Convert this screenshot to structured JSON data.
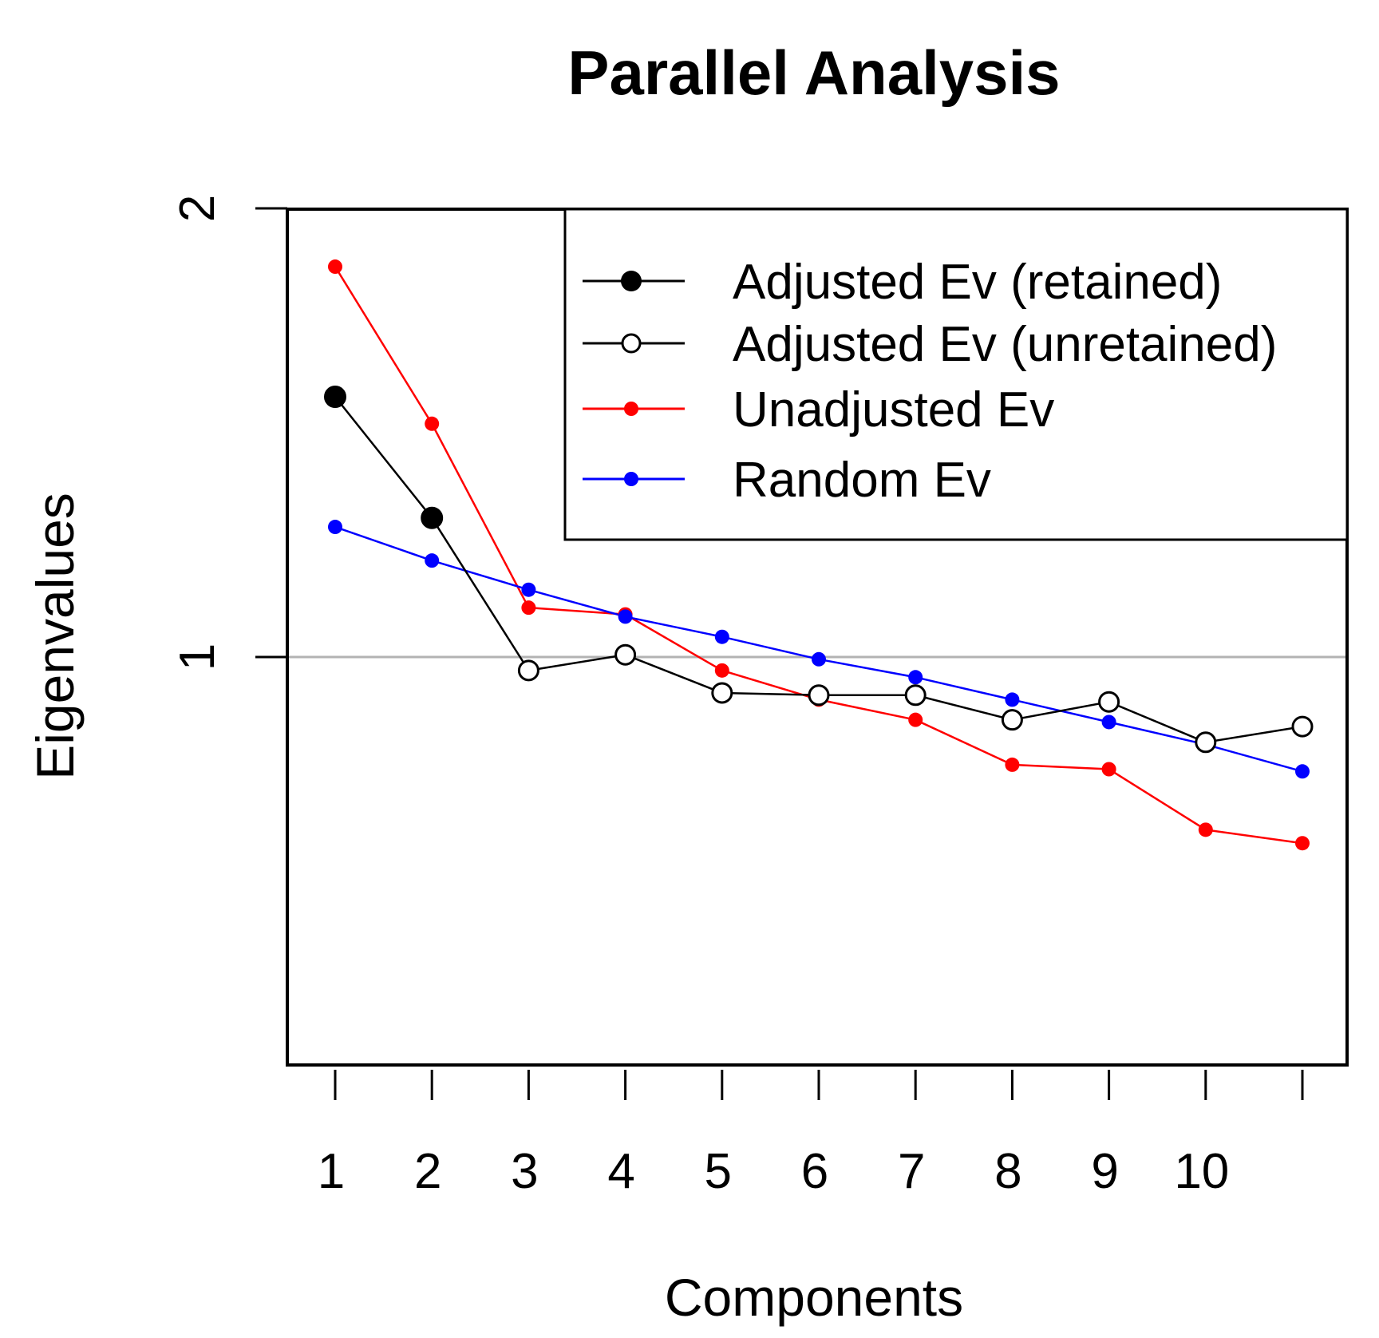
{
  "chart_data": {
    "type": "line",
    "title": "Parallel Analysis",
    "xlabel": "Components",
    "ylabel": "Eigenvalues",
    "x": [
      1,
      2,
      3,
      4,
      5,
      6,
      7,
      8,
      9,
      10,
      11
    ],
    "xtick_labels": [
      "1",
      "2",
      "3",
      "4",
      "5",
      "6",
      "7",
      "8",
      "9",
      "10"
    ],
    "ytick_labels": [
      "2",
      "1"
    ],
    "yticks": [
      2,
      1
    ],
    "xlim": [
      0.5,
      11.5
    ],
    "ylim": [
      0.08,
      2.0
    ],
    "reference_line": {
      "y": 1.0,
      "color": "#b3b3b3"
    },
    "series": [
      {
        "name": "Adjusted Ev (retained)",
        "color": "#000000",
        "marker": "filled-large",
        "x": [
          1,
          2
        ],
        "values": [
          1.58,
          1.31
        ]
      },
      {
        "name": "Adjusted Ev (unretained)",
        "color": "#000000",
        "marker": "open",
        "x": [
          2,
          3,
          4,
          5,
          6,
          7,
          8,
          9,
          10,
          11
        ],
        "values": [
          1.31,
          0.97,
          1.005,
          0.92,
          0.915,
          0.915,
          0.86,
          0.9,
          0.81,
          0.845
        ]
      },
      {
        "name": "Unadjusted Ev",
        "color": "#ff0000",
        "marker": "filled-small",
        "x": [
          1,
          2,
          3,
          4,
          5,
          6,
          7,
          8,
          9,
          10,
          11
        ],
        "values": [
          1.87,
          1.52,
          1.11,
          1.095,
          0.97,
          0.905,
          0.86,
          0.76,
          0.75,
          0.615,
          0.585
        ]
      },
      {
        "name": "Random Ev",
        "color": "#0000ff",
        "marker": "filled-small",
        "x": [
          1,
          2,
          3,
          4,
          5,
          6,
          7,
          8,
          9,
          10,
          11
        ],
        "values": [
          1.29,
          1.215,
          1.15,
          1.09,
          1.045,
          0.995,
          0.955,
          0.905,
          0.855,
          0.805,
          0.745
        ]
      }
    ],
    "legend": {
      "position": "top-right",
      "entries": [
        "Adjusted Ev (retained)",
        "Adjusted Ev (unretained)",
        "Unadjusted Ev",
        "Random Ev"
      ]
    }
  }
}
